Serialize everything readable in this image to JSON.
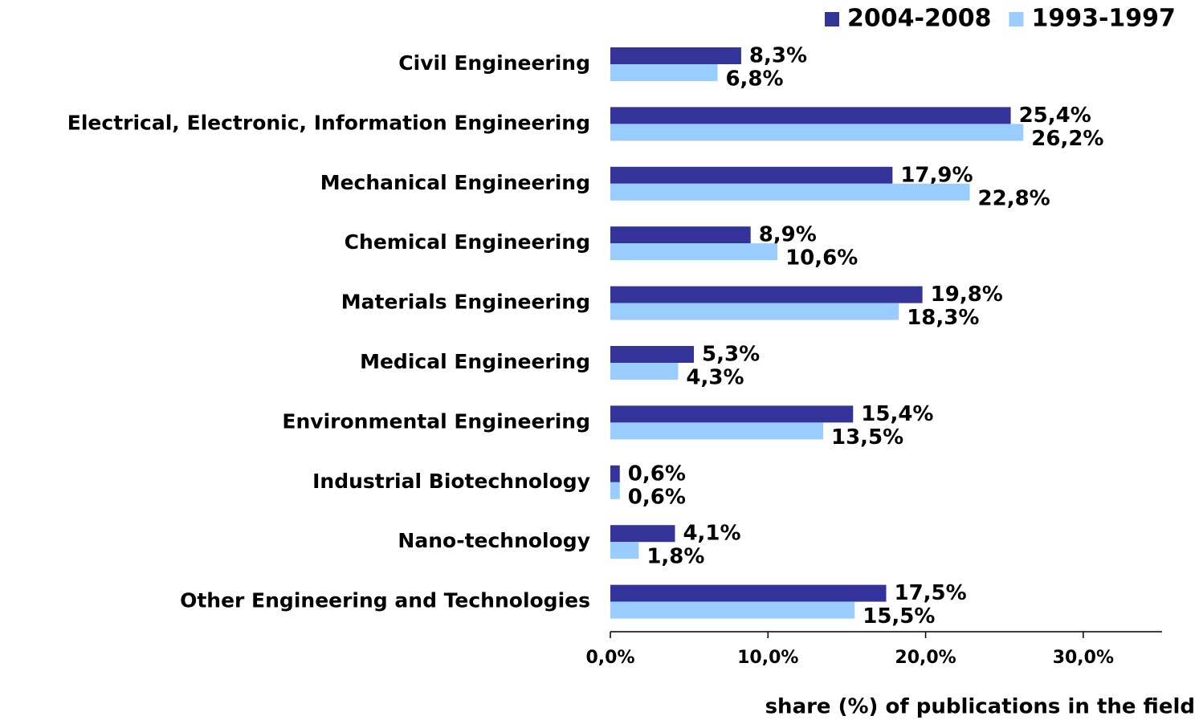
{
  "chart_data": {
    "type": "bar",
    "orientation": "horizontal",
    "x_axis_label": "share (%) of publications in the field",
    "categories": [
      "Civil Engineering",
      "Electrical, Electronic, Information Engineering",
      "Mechanical Engineering",
      "Chemical Engineering",
      "Materials Engineering",
      "Medical Engineering",
      "Environmental Engineering",
      "Industrial Biotechnology",
      "Nano-technology",
      "Other Engineering and Technologies"
    ],
    "series": [
      {
        "name": "2004-2008",
        "color": "#333399",
        "values": [
          8.3,
          25.4,
          17.9,
          8.9,
          19.8,
          5.3,
          15.4,
          0.6,
          4.1,
          17.5
        ],
        "value_labels": [
          "8,3%",
          "25,4%",
          "17,9%",
          "8,9%",
          "19,8%",
          "5,3%",
          "15,4%",
          "0,6%",
          "4,1%",
          "17,5%"
        ]
      },
      {
        "name": "1993-1997",
        "color": "#99ccff",
        "values": [
          6.8,
          26.2,
          22.8,
          10.6,
          18.3,
          4.3,
          13.5,
          0.6,
          1.8,
          15.5
        ],
        "value_labels": [
          "6,8%",
          "26,2%",
          "22,8%",
          "10,6%",
          "18,3%",
          "4,3%",
          "13,5%",
          "0,6%",
          "1,8%",
          "15,5%"
        ]
      }
    ],
    "xlim": [
      0,
      35
    ],
    "xticks": [
      {
        "value": 0,
        "label": "0,0%"
      },
      {
        "value": 10,
        "label": "10,0%"
      },
      {
        "value": 20,
        "label": "20,0%"
      },
      {
        "value": 30,
        "label": "30,0%"
      }
    ],
    "legend": "top-right"
  }
}
